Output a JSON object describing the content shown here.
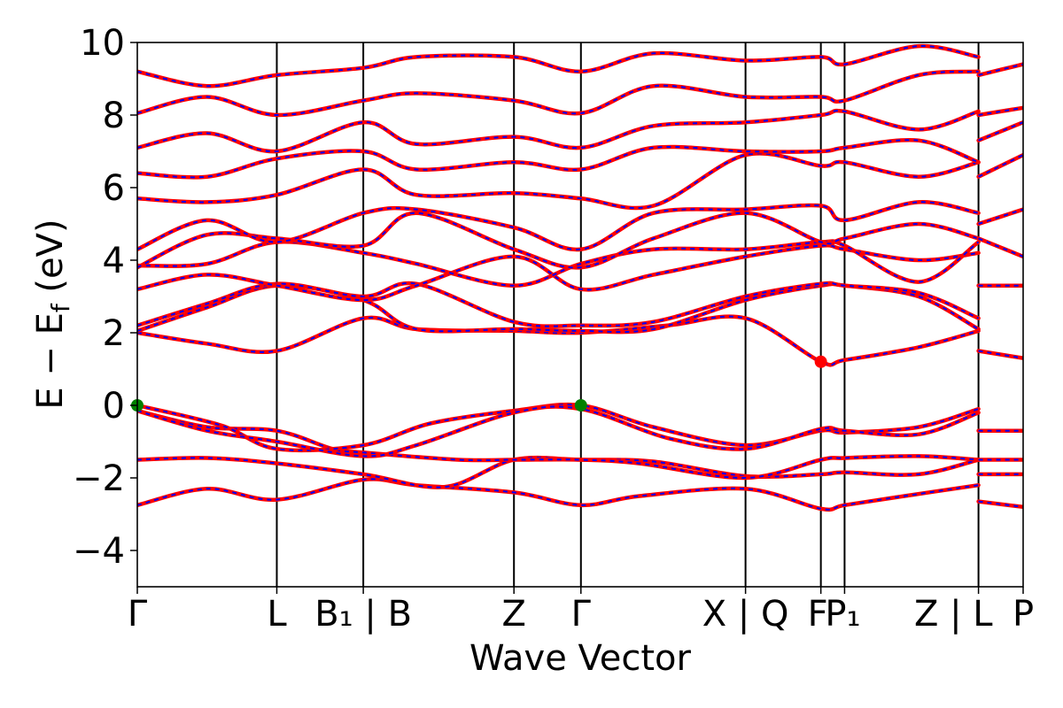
{
  "chart_data": {
    "type": "line",
    "title": "",
    "xlabel": "Wave Vector",
    "ylabel_parts": {
      "main": "E − E",
      "sub": "f",
      "unit": " (eV)"
    },
    "ylim": [
      -5,
      10
    ],
    "yticks": [
      -4,
      -2,
      0,
      2,
      4,
      6,
      8,
      10
    ],
    "ytick_labels": [
      "−4",
      "−2",
      "0",
      "2",
      "4",
      "6",
      "8",
      "10"
    ],
    "x_range": [
      0,
      6.35
    ],
    "kpoints": [
      {
        "x": 0.0,
        "label": "Γ"
      },
      {
        "x": 1.0,
        "label": "L"
      },
      {
        "x": 1.62,
        "label": "B₁ | B"
      },
      {
        "x": 2.7,
        "label": "Z"
      },
      {
        "x": 3.18,
        "label": "Γ"
      },
      {
        "x": 4.36,
        "label": "X | Q"
      },
      {
        "x": 4.9,
        "label": "F"
      },
      {
        "x": 5.07,
        "label": "P₁"
      },
      {
        "x": 6.03,
        "label": "Z | L"
      },
      {
        "x": 6.35,
        "label": "P"
      }
    ],
    "series": [
      {
        "color": "#ff0000",
        "style": "solid"
      },
      {
        "color": "#0000ff",
        "style": "dashed"
      }
    ],
    "bands": [
      {
        "x": [
          0,
          0.5,
          1.0,
          1.62,
          2.0,
          2.7,
          3.18,
          3.6,
          4.36,
          4.9,
          5.07,
          5.5,
          6.03
        ],
        "y": [
          -2.75,
          -2.3,
          -2.6,
          -2.05,
          -2.2,
          -2.4,
          -2.75,
          -2.5,
          -2.3,
          -2.85,
          -2.75,
          -2.5,
          -2.2
        ]
      },
      {
        "x": [
          0,
          0.5,
          1.0,
          1.62,
          2.2,
          2.7,
          3.18,
          3.7,
          4.36,
          4.9,
          5.07,
          5.6,
          6.03
        ],
        "y": [
          -1.5,
          -1.45,
          -1.6,
          -1.9,
          -2.25,
          -1.5,
          -1.5,
          -1.55,
          -1.95,
          -1.9,
          -1.85,
          -1.9,
          -1.5
        ]
      },
      {
        "x": [
          0,
          0.5,
          1.0,
          1.4,
          1.62,
          2.3,
          2.7,
          3.18,
          3.6,
          4.36,
          4.9,
          5.07,
          5.6,
          6.03
        ],
        "y": [
          -0.15,
          -0.6,
          -0.7,
          -1.2,
          -1.3,
          -1.5,
          -1.5,
          -1.5,
          -1.6,
          -2.0,
          -1.5,
          -1.45,
          -1.4,
          -1.5
        ]
      },
      {
        "x": [
          0,
          0.6,
          1.0,
          1.62,
          2.1,
          2.7,
          3.18,
          3.7,
          4.36,
          4.9,
          5.07,
          5.6,
          6.03
        ],
        "y": [
          0.0,
          -0.55,
          -1.2,
          -1.1,
          -0.5,
          -0.15,
          0.0,
          -0.6,
          -1.1,
          -0.7,
          -0.75,
          -0.6,
          -0.1
        ]
      },
      {
        "x": [
          0,
          0.5,
          1.0,
          1.62,
          2.0,
          2.7,
          3.18,
          3.8,
          4.36,
          4.9,
          5.07,
          5.6,
          6.03
        ],
        "y": [
          -0.15,
          -0.7,
          -1.0,
          -1.4,
          -1.1,
          -0.2,
          -0.1,
          -0.9,
          -1.2,
          -0.65,
          -0.7,
          -0.8,
          -0.2
        ]
      },
      {
        "x": [
          0,
          0.5,
          1.0,
          1.62,
          2.0,
          2.7,
          3.18,
          3.8,
          4.36,
          4.9,
          5.07,
          5.6,
          6.03
        ],
        "y": [
          2.0,
          1.7,
          1.5,
          2.4,
          2.1,
          2.05,
          2.0,
          2.2,
          2.4,
          1.2,
          1.25,
          1.6,
          2.05
        ]
      },
      {
        "x": [
          0,
          0.5,
          1.0,
          1.62,
          2.0,
          2.7,
          3.18,
          3.7,
          4.36,
          4.9,
          5.07,
          5.6,
          6.03
        ],
        "y": [
          2.05,
          2.7,
          3.3,
          2.9,
          2.1,
          2.1,
          2.05,
          2.1,
          2.9,
          3.3,
          3.3,
          3.0,
          2.1
        ]
      },
      {
        "x": [
          0,
          0.5,
          1.0,
          1.62,
          2.0,
          2.7,
          3.18,
          3.7,
          4.36,
          4.9,
          5.07,
          5.6,
          6.03
        ],
        "y": [
          2.2,
          2.8,
          3.35,
          3.0,
          3.35,
          2.3,
          2.2,
          2.3,
          3.0,
          3.35,
          3.3,
          3.1,
          2.4
        ]
      },
      {
        "x": [
          0,
          0.5,
          1.0,
          1.62,
          2.0,
          2.7,
          3.18,
          3.7,
          4.36,
          4.9,
          5.07,
          5.6,
          6.03
        ],
        "y": [
          3.2,
          3.6,
          3.3,
          2.9,
          3.3,
          4.1,
          3.2,
          3.6,
          4.1,
          4.4,
          4.3,
          4.0,
          4.2
        ]
      },
      {
        "x": [
          0,
          0.5,
          1.0,
          1.62,
          2.0,
          2.7,
          3.18,
          3.7,
          4.36,
          4.9,
          5.07,
          5.6,
          6.03
        ],
        "y": [
          3.85,
          3.9,
          4.5,
          4.2,
          3.9,
          3.3,
          3.9,
          4.3,
          4.3,
          4.5,
          4.4,
          3.4,
          4.5
        ]
      },
      {
        "x": [
          0,
          0.5,
          1.0,
          1.62,
          2.0,
          2.7,
          3.18,
          3.7,
          4.36,
          4.9,
          5.07,
          5.6,
          6.03
        ],
        "y": [
          3.8,
          4.7,
          4.6,
          4.4,
          5.3,
          4.3,
          3.8,
          4.6,
          5.3,
          4.5,
          4.6,
          5.0,
          4.6
        ]
      },
      {
        "x": [
          0,
          0.5,
          1.0,
          1.62,
          2.0,
          2.7,
          3.18,
          3.7,
          4.36,
          4.9,
          5.07,
          5.6,
          6.03
        ],
        "y": [
          4.3,
          5.1,
          4.5,
          5.3,
          5.4,
          4.9,
          4.3,
          5.3,
          5.4,
          5.5,
          5.1,
          5.6,
          5.3
        ]
      },
      {
        "x": [
          0,
          0.5,
          1.0,
          1.62,
          2.0,
          2.7,
          3.18,
          3.7,
          4.36,
          4.9,
          5.07,
          5.6,
          6.03
        ],
        "y": [
          5.7,
          5.6,
          5.8,
          6.5,
          5.8,
          5.85,
          5.7,
          5.5,
          6.9,
          6.6,
          6.7,
          6.3,
          6.7
        ]
      },
      {
        "x": [
          0,
          0.5,
          1.0,
          1.62,
          2.0,
          2.7,
          3.18,
          3.7,
          4.36,
          4.9,
          5.07,
          5.6,
          6.03
        ],
        "y": [
          6.4,
          6.3,
          6.8,
          7.0,
          6.5,
          6.7,
          6.5,
          7.1,
          7.0,
          7.0,
          7.1,
          7.3,
          6.7
        ]
      },
      {
        "x": [
          0,
          0.5,
          1.0,
          1.62,
          2.0,
          2.7,
          3.18,
          3.7,
          4.36,
          4.9,
          5.07,
          5.6,
          6.03
        ],
        "y": [
          7.1,
          7.5,
          7.0,
          7.8,
          7.2,
          7.4,
          7.1,
          7.7,
          7.8,
          8.0,
          8.1,
          7.6,
          8.1
        ]
      },
      {
        "x": [
          0,
          0.5,
          1.0,
          1.62,
          2.0,
          2.7,
          3.18,
          3.7,
          4.36,
          4.9,
          5.07,
          5.6,
          6.03
        ],
        "y": [
          8.05,
          8.5,
          8.0,
          8.4,
          8.6,
          8.4,
          8.05,
          8.8,
          8.5,
          8.5,
          8.4,
          9.1,
          9.2
        ]
      },
      {
        "x": [
          0,
          0.5,
          1.0,
          1.62,
          2.0,
          2.7,
          3.18,
          3.7,
          4.36,
          4.9,
          5.07,
          5.6,
          6.03
        ],
        "y": [
          9.2,
          8.8,
          9.1,
          9.3,
          9.6,
          9.6,
          9.2,
          9.7,
          9.5,
          9.6,
          9.4,
          9.9,
          9.6
        ]
      },
      {
        "x": [
          6.03,
          6.35
        ],
        "y": [
          -2.65,
          -2.8
        ]
      },
      {
        "x": [
          6.03,
          6.35
        ],
        "y": [
          -1.9,
          -1.9
        ]
      },
      {
        "x": [
          6.03,
          6.35
        ],
        "y": [
          -1.5,
          -1.5
        ]
      },
      {
        "x": [
          6.03,
          6.35
        ],
        "y": [
          -0.7,
          -0.7
        ]
      },
      {
        "x": [
          6.03,
          6.35
        ],
        "y": [
          1.5,
          1.3
        ]
      },
      {
        "x": [
          6.03,
          6.35
        ],
        "y": [
          3.3,
          3.3
        ]
      },
      {
        "x": [
          6.03,
          6.35
        ],
        "y": [
          4.6,
          4.1
        ]
      },
      {
        "x": [
          6.03,
          6.35
        ],
        "y": [
          5.0,
          5.4
        ]
      },
      {
        "x": [
          6.03,
          6.35
        ],
        "y": [
          6.3,
          6.9
        ]
      },
      {
        "x": [
          6.03,
          6.35
        ],
        "y": [
          7.3,
          7.8
        ]
      },
      {
        "x": [
          6.03,
          6.35
        ],
        "y": [
          8.0,
          8.2
        ]
      },
      {
        "x": [
          6.03,
          6.35
        ],
        "y": [
          9.1,
          9.4
        ]
      }
    ],
    "markers": [
      {
        "x": 0.0,
        "y": 0.0,
        "color": "#008000"
      },
      {
        "x": 3.18,
        "y": 0.0,
        "color": "#008000"
      },
      {
        "x": 4.9,
        "y": 1.2,
        "color": "#ff0000"
      }
    ]
  }
}
